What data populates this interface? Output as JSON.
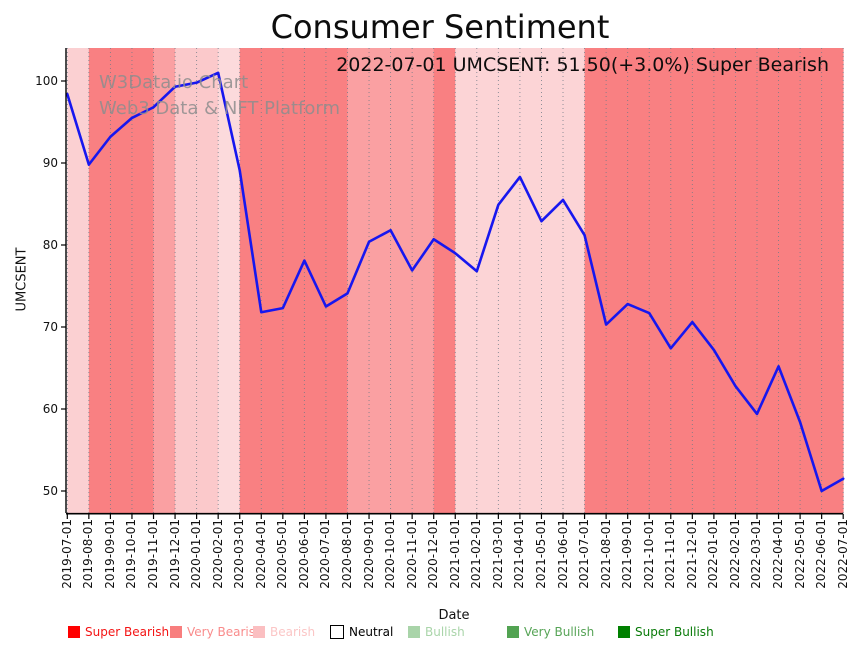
{
  "title": "Consumer Sentiment",
  "annotation": "2022-07-01 UMCSENT: 51.50(+3.0%) Super Bearish",
  "watermark": {
    "line1": "W3Data.io Chart",
    "line2": "Web3 Data & NFT Platform"
  },
  "axes": {
    "y_label": "UMCSENT",
    "x_label": "Date",
    "y_ticks": [
      50,
      60,
      70,
      80,
      90,
      100
    ],
    "x_ticks": [
      "2019-07-01",
      "2019-08-01",
      "2019-09-01",
      "2019-10-01",
      "2019-11-01",
      "2019-12-01",
      "2020-01-01",
      "2020-02-01",
      "2020-03-01",
      "2020-04-01",
      "2020-05-01",
      "2020-06-01",
      "2020-07-01",
      "2020-08-01",
      "2020-09-01",
      "2020-10-01",
      "2020-11-01",
      "2020-12-01",
      "2021-01-01",
      "2021-02-01",
      "2021-03-01",
      "2021-04-01",
      "2021-05-01",
      "2021-06-01",
      "2021-07-01",
      "2021-08-01",
      "2021-09-01",
      "2021-10-01",
      "2021-11-01",
      "2021-12-01",
      "2022-01-01",
      "2022-02-01",
      "2022-03-01",
      "2022-04-01",
      "2022-05-01",
      "2022-06-01",
      "2022-07-01"
    ]
  },
  "legend": [
    {
      "label": "Super Bearish",
      "swatch": "#ff0000",
      "text_color": "#f41414"
    },
    {
      "label": "Very Bearish",
      "swatch": "#f87e7e",
      "text_color": "#f98b8b"
    },
    {
      "label": "Bearish",
      "swatch": "#fbbfc1",
      "text_color": "#fbc6c6"
    },
    {
      "label": "Neutral",
      "swatch": "#ffffff",
      "text_color": "#000000",
      "swatch_border": "#000000"
    },
    {
      "label": "Bullish",
      "swatch": "#a9d4a9",
      "text_color": "#aad5aa"
    },
    {
      "label": "Very Bullish",
      "swatch": "#52a352",
      "text_color": "#57a457"
    },
    {
      "label": "Super Bullish",
      "swatch": "#008000",
      "text_color": "#087a08"
    }
  ],
  "chart_data": {
    "type": "line",
    "title": "Consumer Sentiment",
    "xlabel": "Date",
    "ylabel": "UMCSENT",
    "ylim": [
      47.3,
      104.0
    ],
    "grid": "vertical-dotted",
    "line_color": "#1717ef",
    "x": [
      "2019-07-01",
      "2019-08-01",
      "2019-09-01",
      "2019-10-01",
      "2019-11-01",
      "2019-12-01",
      "2020-01-01",
      "2020-02-01",
      "2020-03-01",
      "2020-04-01",
      "2020-05-01",
      "2020-06-01",
      "2020-07-01",
      "2020-08-01",
      "2020-09-01",
      "2020-10-01",
      "2020-11-01",
      "2020-12-01",
      "2021-01-01",
      "2021-02-01",
      "2021-03-01",
      "2021-04-01",
      "2021-05-01",
      "2021-06-01",
      "2021-07-01",
      "2021-08-01",
      "2021-09-01",
      "2021-10-01",
      "2021-11-01",
      "2021-12-01",
      "2022-01-01",
      "2022-02-01",
      "2022-03-01",
      "2022-04-01",
      "2022-05-01",
      "2022-06-01",
      "2022-07-01"
    ],
    "values": [
      98.4,
      89.8,
      93.2,
      95.5,
      96.8,
      99.3,
      99.8,
      101.0,
      89.1,
      71.8,
      72.3,
      78.1,
      72.5,
      74.1,
      80.4,
      81.8,
      76.9,
      80.7,
      79.0,
      76.8,
      84.9,
      88.3,
      82.9,
      85.5,
      81.2,
      70.3,
      72.8,
      71.7,
      67.4,
      70.6,
      67.2,
      62.8,
      59.4,
      65.2,
      58.4,
      50.0,
      51.5
    ],
    "band_palette": {
      "red_strong": "#f98082",
      "red_medium": "#faa0a2",
      "pink": "#fbc9cb",
      "pink_light": "#fbd0d2",
      "pink_lighter": "#fcd4d6",
      "pink_lightest": "#fcdadc"
    },
    "band_class_by_month": [
      "pink_light",
      "red_strong",
      "red_strong",
      "red_strong",
      "red_medium",
      "pink",
      "pink",
      "pink_lightest",
      "red_strong",
      "red_strong",
      "red_strong",
      "red_strong",
      "red_strong",
      "red_medium",
      "red_medium",
      "red_medium",
      "red_medium",
      "red_strong",
      "pink_lighter",
      "pink_lighter",
      "pink_lighter",
      "pink_lighter",
      "pink_lighter",
      "pink_lighter",
      "red_strong",
      "red_strong",
      "red_strong",
      "red_strong",
      "red_strong",
      "red_strong",
      "red_strong",
      "red_strong",
      "red_strong",
      "red_strong",
      "red_strong",
      "red_strong",
      "red_strong"
    ]
  }
}
